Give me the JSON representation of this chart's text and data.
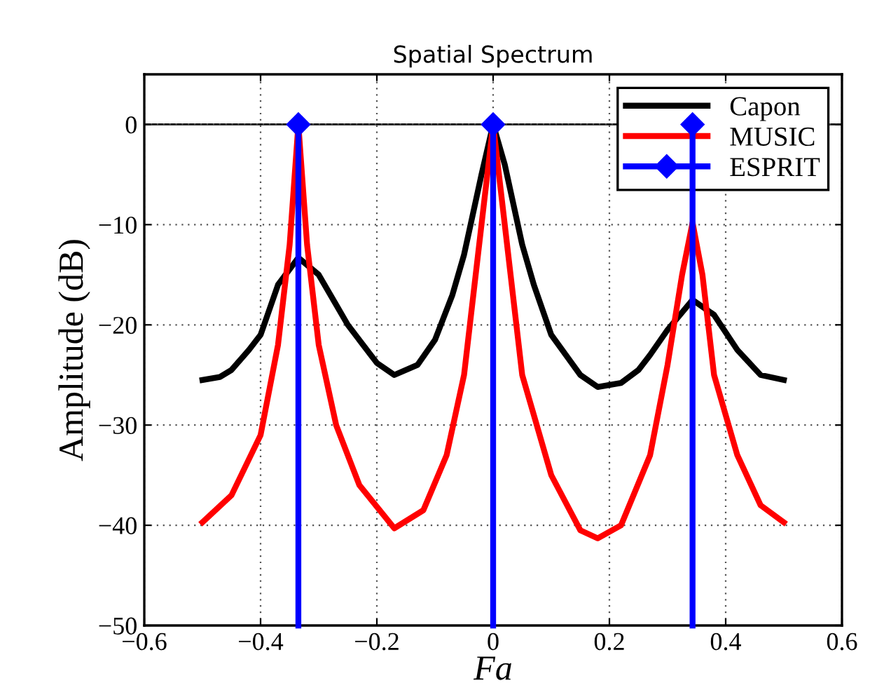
{
  "chart_data": {
    "type": "line",
    "title": "Spatial Spectrum",
    "xlabel": "Fa",
    "ylabel": "Amplitude (dB)",
    "xlim": [
      -0.6,
      0.6
    ],
    "xticks": [
      {
        "value": -0.6,
        "label": "−0.6"
      },
      {
        "value": -0.4,
        "label": "−0.4"
      },
      {
        "value": -0.2,
        "label": "−0.2"
      },
      0,
      0.2,
      0.4,
      0.6
    ],
    "ylim": [
      -50,
      5
    ],
    "yticks": [
      {
        "value": -50,
        "label": "−50"
      },
      {
        "value": -40,
        "label": "−40"
      },
      {
        "value": -30,
        "label": "−30"
      },
      {
        "value": -20,
        "label": "−20"
      },
      {
        "value": -10,
        "label": "−10"
      },
      0
    ],
    "grid": true,
    "legend": "top right",
    "ref_lines": [
      {
        "axis": "y",
        "value": 0,
        "color": "#000000"
      }
    ],
    "series": [
      {
        "name": "Capon",
        "color": "#000000",
        "x": [
          -0.5,
          -0.47,
          -0.45,
          -0.42,
          -0.4,
          -0.37,
          -0.335,
          -0.3,
          -0.27,
          -0.25,
          -0.2,
          -0.17,
          -0.13,
          -0.1,
          -0.07,
          -0.05,
          -0.02,
          0,
          0.02,
          0.05,
          0.07,
          0.1,
          0.15,
          0.18,
          0.22,
          0.25,
          0.27,
          0.3,
          0.343,
          0.38,
          0.42,
          0.46,
          0.5
        ],
        "values": [
          -25.5,
          -25.2,
          -24.5,
          -22.5,
          -21,
          -16,
          -13.3,
          -15,
          -18,
          -20,
          -23.8,
          -25,
          -24,
          -21.5,
          -17,
          -13,
          -5,
          0,
          -4,
          -12,
          -16,
          -21,
          -25,
          -26.2,
          -25.8,
          -24.5,
          -23,
          -20.5,
          -17.5,
          -19,
          -22.5,
          -25,
          -25.5
        ]
      },
      {
        "name": "MUSIC",
        "color": "#ff0000",
        "x": [
          -0.5,
          -0.45,
          -0.4,
          -0.37,
          -0.35,
          -0.335,
          -0.32,
          -0.3,
          -0.27,
          -0.23,
          -0.17,
          -0.12,
          -0.08,
          -0.05,
          -0.03,
          0,
          0.03,
          0.05,
          0.1,
          0.15,
          0.18,
          0.22,
          0.27,
          0.3,
          0.325,
          0.343,
          0.36,
          0.38,
          0.42,
          0.46,
          0.5
        ],
        "values": [
          -39.7,
          -37,
          -31,
          -22,
          -12,
          0,
          -12,
          -22,
          -30,
          -36,
          -40.3,
          -38.5,
          -33,
          -25,
          -15,
          0,
          -15,
          -25,
          -35,
          -40.5,
          -41.3,
          -40,
          -33,
          -24,
          -15,
          -9.8,
          -15,
          -25,
          -33,
          -38,
          -39.7
        ]
      },
      {
        "name": "ESPRIT",
        "color": "#0000ff",
        "marker": "diamond",
        "x": [
          -0.335,
          -0.335,
          null,
          0,
          0,
          null,
          0.343,
          0.343
        ],
        "values": [
          -50,
          0,
          null,
          -50,
          0,
          null,
          -50,
          0
        ]
      }
    ]
  }
}
